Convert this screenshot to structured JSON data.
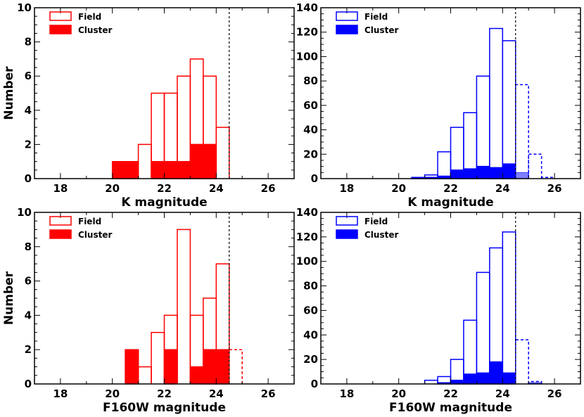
{
  "chart_data": [
    {
      "type": "histogram",
      "panel": "top-left",
      "xlabel": "K magnitude",
      "ylabel": "Number",
      "xlim": [
        17,
        27
      ],
      "ylim": [
        0,
        10
      ],
      "xticks": [
        "18",
        "20",
        "22",
        "24",
        "26"
      ],
      "yticks": [
        "0",
        "2",
        "4",
        "6",
        "8",
        "10"
      ],
      "cutoff": 24.5,
      "color": "#ff0000",
      "legend": [
        "Field",
        "Cluster"
      ],
      "bin_width": 0.5,
      "field_bins": [
        [
          21,
          2
        ],
        [
          21.5,
          5
        ],
        [
          22,
          5
        ],
        [
          22.5,
          6
        ],
        [
          23,
          7
        ],
        [
          23.5,
          6
        ],
        [
          24,
          3
        ]
      ],
      "field_dashed_bins": [],
      "cluster_bins": [
        [
          20,
          1
        ],
        [
          20.5,
          1
        ],
        [
          21.5,
          1
        ],
        [
          22,
          1
        ],
        [
          22.5,
          1
        ],
        [
          23,
          2
        ],
        [
          23.5,
          2
        ]
      ],
      "cluster_light_bins": []
    },
    {
      "type": "histogram",
      "panel": "top-right",
      "xlabel": "K magnitude",
      "ylabel": "",
      "xlim": [
        17,
        27
      ],
      "ylim": [
        0,
        140
      ],
      "xticks": [
        "18",
        "20",
        "22",
        "24",
        "26"
      ],
      "yticks": [
        "0",
        "20",
        "40",
        "60",
        "80",
        "100",
        "120",
        "140"
      ],
      "cutoff": 24.5,
      "color": "#0000ff",
      "legend": [
        "Field",
        "Cluster"
      ],
      "bin_width": 0.5,
      "field_bins": [
        [
          20.5,
          1
        ],
        [
          21,
          3
        ],
        [
          21.5,
          22
        ],
        [
          22,
          42
        ],
        [
          22.5,
          54
        ],
        [
          23,
          84
        ],
        [
          23.5,
          123
        ],
        [
          24,
          113
        ]
      ],
      "field_dashed_bins": [
        [
          24.5,
          77
        ],
        [
          25,
          20
        ],
        [
          25.5,
          1
        ]
      ],
      "cluster_bins": [
        [
          20.5,
          1
        ],
        [
          21,
          1
        ],
        [
          21.5,
          2
        ],
        [
          22,
          7
        ],
        [
          22.5,
          8
        ],
        [
          23,
          10
        ],
        [
          23.5,
          9
        ],
        [
          24,
          12
        ]
      ],
      "cluster_light_bins": [
        [
          24.5,
          5
        ]
      ]
    },
    {
      "type": "histogram",
      "panel": "bottom-left",
      "xlabel": "F160W magnitude",
      "ylabel": "Number",
      "xlim": [
        17,
        27
      ],
      "ylim": [
        0,
        10
      ],
      "xticks": [
        "18",
        "20",
        "22",
        "24",
        "26"
      ],
      "yticks": [
        "0",
        "2",
        "4",
        "6",
        "8",
        "10"
      ],
      "cutoff": 24.5,
      "color": "#ff0000",
      "legend": [
        "Field",
        "Cluster"
      ],
      "bin_width": 0.5,
      "field_bins": [
        [
          20.5,
          2
        ],
        [
          21,
          1
        ],
        [
          21.5,
          3
        ],
        [
          22,
          4
        ],
        [
          22.5,
          9
        ],
        [
          23,
          4
        ],
        [
          23.5,
          5
        ],
        [
          24,
          7
        ]
      ],
      "field_dashed_bins": [
        [
          24.5,
          2
        ]
      ],
      "cluster_bins": [
        [
          20.5,
          2
        ],
        [
          22,
          2
        ],
        [
          23,
          1
        ],
        [
          23.5,
          2
        ],
        [
          24,
          2
        ]
      ],
      "cluster_light_bins": []
    },
    {
      "type": "histogram",
      "panel": "bottom-right",
      "xlabel": "F160W magnitude",
      "ylabel": "",
      "xlim": [
        17,
        27
      ],
      "ylim": [
        0,
        140
      ],
      "xticks": [
        "18",
        "20",
        "22",
        "24",
        "26"
      ],
      "yticks": [
        "0",
        "20",
        "40",
        "60",
        "80",
        "100",
        "120",
        "140"
      ],
      "cutoff": 24.5,
      "color": "#0000ff",
      "legend": [
        "Field",
        "Cluster"
      ],
      "bin_width": 0.5,
      "field_bins": [
        [
          21,
          3
        ],
        [
          21.5,
          6
        ],
        [
          22,
          20
        ],
        [
          22.5,
          52
        ],
        [
          23,
          91
        ],
        [
          23.5,
          111
        ],
        [
          24,
          124
        ]
      ],
      "field_dashed_bins": [
        [
          24.5,
          36
        ],
        [
          25,
          2
        ]
      ],
      "cluster_bins": [
        [
          21.5,
          1
        ],
        [
          22,
          3
        ],
        [
          22.5,
          8
        ],
        [
          23,
          9
        ],
        [
          23.5,
          18
        ],
        [
          24,
          9
        ]
      ],
      "cluster_light_bins": [
        [
          25,
          1
        ]
      ]
    }
  ]
}
